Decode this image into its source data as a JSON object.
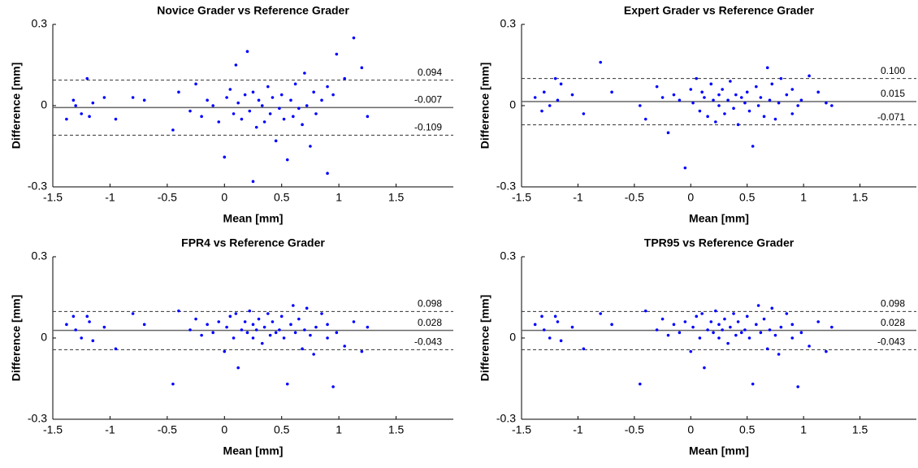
{
  "chart_data": [
    {
      "type": "scatter",
      "title": "Novice Grader vs Reference Grader",
      "xlabel": "Mean [mm]",
      "ylabel": "Difference [mm]",
      "color": "#0000ff",
      "x": [
        -1.38,
        -1.32,
        -1.3,
        -1.25,
        -1.2,
        -1.18,
        -1.15,
        -1.05,
        -0.95,
        -0.8,
        -0.7,
        -0.45,
        -0.4,
        -0.3,
        -0.25,
        -0.2,
        -0.15,
        -0.1,
        -0.05,
        0.0,
        0.02,
        0.05,
        0.08,
        0.1,
        0.12,
        0.15,
        0.18,
        0.2,
        0.22,
        0.25,
        0.25,
        0.28,
        0.3,
        0.33,
        0.35,
        0.38,
        0.4,
        0.42,
        0.45,
        0.48,
        0.5,
        0.52,
        0.55,
        0.58,
        0.6,
        0.62,
        0.65,
        0.68,
        0.7,
        0.72,
        0.75,
        0.78,
        0.8,
        0.85,
        0.9,
        0.9,
        0.95,
        0.98,
        1.05,
        1.13,
        1.2,
        1.25
      ],
      "y": [
        -0.05,
        0.02,
        0.0,
        -0.03,
        0.1,
        -0.04,
        0.01,
        0.03,
        -0.05,
        0.03,
        0.02,
        -0.09,
        0.05,
        -0.02,
        0.08,
        -0.04,
        0.02,
        0.0,
        -0.06,
        -0.19,
        0.03,
        0.06,
        -0.03,
        0.15,
        0.01,
        -0.05,
        0.04,
        0.2,
        -0.02,
        -0.28,
        0.05,
        -0.08,
        0.02,
        0.0,
        -0.06,
        0.07,
        -0.03,
        0.03,
        -0.13,
        -0.01,
        0.04,
        -0.05,
        -0.2,
        0.02,
        -0.04,
        0.08,
        -0.01,
        -0.07,
        0.12,
        0.0,
        -0.15,
        0.05,
        -0.03,
        0.02,
        -0.25,
        0.07,
        0.04,
        0.19,
        0.1,
        0.25,
        0.14,
        -0.04
      ],
      "xlim": [
        -1.5,
        2.0
      ],
      "ylim": [
        -0.3,
        0.3
      ],
      "xticks": [
        -1.5,
        -1,
        -0.5,
        0,
        0.5,
        1,
        1.5
      ],
      "yticks": [
        -0.3,
        0,
        0.3
      ],
      "hlines": [
        {
          "value": 0.094,
          "label": "0.094",
          "style": "dashed"
        },
        {
          "value": -0.007,
          "label": "-0.007",
          "style": "solid"
        },
        {
          "value": -0.109,
          "label": "-0.109",
          "style": "dashed"
        }
      ]
    },
    {
      "type": "scatter",
      "title": "Expert Grader vs Reference Grader",
      "xlabel": "Mean [mm]",
      "ylabel": "Difference [mm]",
      "color": "#0000ff",
      "x": [
        -1.38,
        -1.32,
        -1.3,
        -1.25,
        -1.2,
        -1.18,
        -1.15,
        -1.05,
        -0.95,
        -0.8,
        -0.7,
        -0.45,
        -0.4,
        -0.3,
        -0.25,
        -0.2,
        -0.15,
        -0.1,
        -0.05,
        0.0,
        0.02,
        0.05,
        0.08,
        0.1,
        0.12,
        0.15,
        0.18,
        0.2,
        0.22,
        0.25,
        0.25,
        0.28,
        0.3,
        0.33,
        0.35,
        0.38,
        0.4,
        0.42,
        0.45,
        0.48,
        0.5,
        0.52,
        0.55,
        0.58,
        0.6,
        0.62,
        0.65,
        0.68,
        0.7,
        0.72,
        0.75,
        0.78,
        0.8,
        0.85,
        0.9,
        0.9,
        0.95,
        0.98,
        1.05,
        1.13,
        1.2,
        1.25
      ],
      "y": [
        0.03,
        -0.02,
        0.05,
        0.0,
        0.1,
        0.02,
        0.08,
        0.04,
        -0.03,
        0.16,
        0.05,
        0.0,
        -0.05,
        0.07,
        0.03,
        -0.1,
        0.04,
        0.02,
        -0.23,
        0.06,
        0.01,
        0.1,
        -0.02,
        0.05,
        0.03,
        -0.04,
        0.08,
        0.02,
        -0.06,
        0.04,
        0.0,
        0.06,
        -0.03,
        0.02,
        0.09,
        -0.01,
        0.04,
        -0.07,
        0.03,
        0.01,
        0.05,
        -0.02,
        -0.15,
        0.07,
        0.0,
        0.03,
        -0.04,
        0.14,
        0.02,
        0.08,
        -0.05,
        0.01,
        0.1,
        0.04,
        -0.03,
        0.06,
        0.0,
        0.02,
        0.11,
        0.05,
        0.01,
        0.0
      ],
      "xlim": [
        -1.5,
        2.0
      ],
      "ylim": [
        -0.3,
        0.3
      ],
      "xticks": [
        -1.5,
        -1,
        -0.5,
        0,
        0.5,
        1,
        1.5
      ],
      "yticks": [
        -0.3,
        0,
        0.3
      ],
      "hlines": [
        {
          "value": 0.1,
          "label": "0.100",
          "style": "dashed"
        },
        {
          "value": 0.015,
          "label": "0.015",
          "style": "solid"
        },
        {
          "value": -0.071,
          "label": "-0.071",
          "style": "dashed"
        }
      ]
    },
    {
      "type": "scatter",
      "title": "FPR4 vs Reference Grader",
      "xlabel": "Mean [mm]",
      "ylabel": "Difference [mm]",
      "color": "#0000ff",
      "x": [
        -1.38,
        -1.32,
        -1.3,
        -1.25,
        -1.2,
        -1.18,
        -1.15,
        -1.05,
        -0.95,
        -0.8,
        -0.7,
        -0.45,
        -0.4,
        -0.3,
        -0.25,
        -0.2,
        -0.15,
        -0.1,
        -0.05,
        0.0,
        0.02,
        0.05,
        0.08,
        0.1,
        0.12,
        0.15,
        0.18,
        0.2,
        0.22,
        0.25,
        0.25,
        0.28,
        0.3,
        0.33,
        0.35,
        0.38,
        0.4,
        0.42,
        0.45,
        0.48,
        0.5,
        0.52,
        0.55,
        0.58,
        0.6,
        0.62,
        0.65,
        0.68,
        0.7,
        0.72,
        0.75,
        0.78,
        0.8,
        0.85,
        0.9,
        0.9,
        0.95,
        0.98,
        1.05,
        1.13,
        1.2,
        1.25
      ],
      "y": [
        0.05,
        0.08,
        0.03,
        0.0,
        0.08,
        0.06,
        -0.01,
        0.04,
        -0.04,
        0.09,
        0.05,
        -0.17,
        0.1,
        0.03,
        0.07,
        0.01,
        0.05,
        0.02,
        0.06,
        -0.05,
        0.04,
        0.08,
        0.0,
        0.09,
        -0.11,
        0.03,
        0.06,
        0.02,
        0.1,
        0.0,
        0.05,
        0.03,
        0.07,
        -0.02,
        0.04,
        0.09,
        0.01,
        0.06,
        0.02,
        0.03,
        0.08,
        0.0,
        -0.17,
        0.05,
        0.12,
        0.02,
        0.07,
        -0.04,
        0.03,
        0.11,
        0.01,
        -0.06,
        0.04,
        0.09,
        0.0,
        0.05,
        -0.18,
        0.02,
        -0.03,
        0.06,
        -0.05,
        0.04
      ],
      "xlim": [
        -1.5,
        2.0
      ],
      "ylim": [
        -0.3,
        0.3
      ],
      "xticks": [
        -1.5,
        -1,
        -0.5,
        0,
        0.5,
        1,
        1.5
      ],
      "yticks": [
        -0.3,
        0,
        0.3
      ],
      "hlines": [
        {
          "value": 0.098,
          "label": "0.098",
          "style": "dashed"
        },
        {
          "value": 0.028,
          "label": "0.028",
          "style": "solid"
        },
        {
          "value": -0.043,
          "label": "-0.043",
          "style": "dashed"
        }
      ]
    },
    {
      "type": "scatter",
      "title": "TPR95 vs Reference Grader",
      "xlabel": "Mean [mm]",
      "ylabel": "Difference [mm]",
      "color": "#0000ff",
      "x": [
        -1.38,
        -1.32,
        -1.3,
        -1.25,
        -1.2,
        -1.18,
        -1.15,
        -1.05,
        -0.95,
        -0.8,
        -0.7,
        -0.45,
        -0.4,
        -0.3,
        -0.25,
        -0.2,
        -0.15,
        -0.1,
        -0.05,
        0.0,
        0.02,
        0.05,
        0.08,
        0.1,
        0.12,
        0.15,
        0.18,
        0.2,
        0.22,
        0.25,
        0.25,
        0.28,
        0.3,
        0.33,
        0.35,
        0.38,
        0.4,
        0.42,
        0.45,
        0.48,
        0.5,
        0.52,
        0.55,
        0.58,
        0.6,
        0.62,
        0.65,
        0.68,
        0.7,
        0.72,
        0.75,
        0.78,
        0.8,
        0.85,
        0.9,
        0.9,
        0.95,
        0.98,
        1.05,
        1.13,
        1.2,
        1.25
      ],
      "y": [
        0.05,
        0.08,
        0.03,
        0.0,
        0.08,
        0.06,
        -0.01,
        0.04,
        -0.04,
        0.09,
        0.05,
        -0.17,
        0.1,
        0.03,
        0.07,
        0.01,
        0.05,
        0.02,
        0.06,
        -0.05,
        0.04,
        0.08,
        0.0,
        0.09,
        -0.11,
        0.03,
        0.06,
        0.02,
        0.1,
        0.0,
        0.05,
        0.03,
        0.07,
        -0.02,
        0.04,
        0.09,
        0.01,
        0.06,
        0.02,
        0.03,
        0.08,
        0.0,
        -0.17,
        0.05,
        0.12,
        0.02,
        0.07,
        -0.04,
        0.03,
        0.11,
        0.01,
        -0.06,
        0.04,
        0.09,
        0.0,
        0.05,
        -0.18,
        0.02,
        -0.03,
        0.06,
        -0.05,
        0.04
      ],
      "xlim": [
        -1.5,
        2.0
      ],
      "ylim": [
        -0.3,
        0.3
      ],
      "xticks": [
        -1.5,
        -1,
        -0.5,
        0,
        0.5,
        1,
        1.5
      ],
      "yticks": [
        -0.3,
        0,
        0.3
      ],
      "hlines": [
        {
          "value": 0.098,
          "label": "0.098",
          "style": "dashed"
        },
        {
          "value": 0.028,
          "label": "0.028",
          "style": "solid"
        },
        {
          "value": -0.043,
          "label": "-0.043",
          "style": "dashed"
        }
      ]
    }
  ]
}
